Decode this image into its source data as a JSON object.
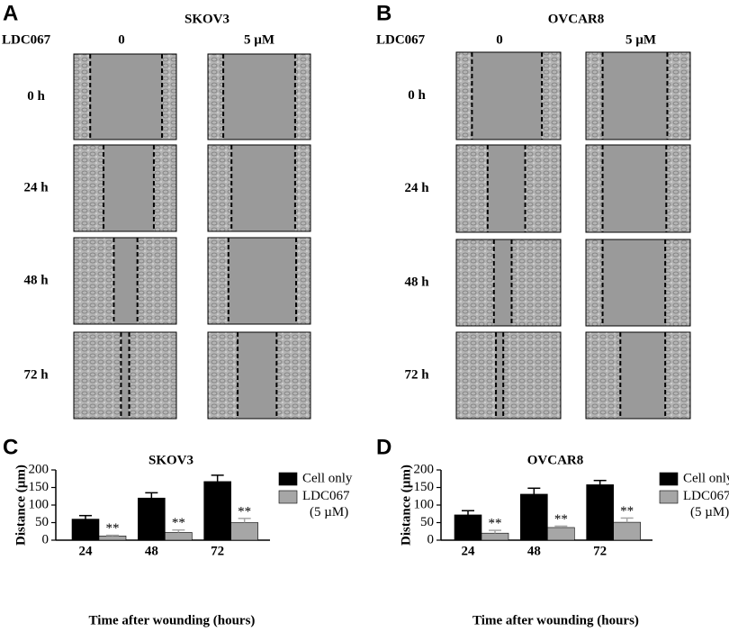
{
  "image_panels": [
    {
      "label": "A",
      "title": "SKOV3",
      "row_header": "LDC067",
      "columns": [
        "0",
        "5 µM"
      ],
      "rows": [
        "0 h",
        "24 h",
        "48 h",
        "72 h"
      ]
    },
    {
      "label": "B",
      "title": "OVCAR8",
      "row_header": "LDC067",
      "columns": [
        "0",
        "5 µM"
      ],
      "rows": [
        "0 h",
        "24 h",
        "48 h",
        "72 h"
      ]
    }
  ],
  "chart_data": [
    {
      "type": "bar",
      "panel_label": "C",
      "title": "SKOV3",
      "x_label": "Time after wounding (hours)",
      "y_label": "Distance (µm)",
      "categories": [
        "24",
        "48",
        "72"
      ],
      "series": [
        {
          "name": "Cell only",
          "color": "#000000",
          "values": [
            60,
            120,
            167
          ],
          "errors": [
            10,
            15,
            18
          ]
        },
        {
          "name": "LDC067 (5 µM)",
          "color": "#a6a6a6",
          "values": [
            12,
            22,
            50
          ],
          "errors": [
            2,
            7,
            12
          ],
          "significance": [
            "**",
            "**",
            "**"
          ]
        }
      ],
      "ylim": [
        0,
        200
      ],
      "yticks": [
        0,
        50,
        100,
        150,
        200
      ],
      "grid": false,
      "legend": "right"
    },
    {
      "type": "bar",
      "panel_label": "D",
      "title": "OVCAR8",
      "x_label": "Time after wounding (hours)",
      "y_label": "Distance (µm)",
      "categories": [
        "24",
        "48",
        "72"
      ],
      "series": [
        {
          "name": "Cell only",
          "color": "#000000",
          "values": [
            72,
            131,
            158
          ],
          "errors": [
            12,
            17,
            12
          ]
        },
        {
          "name": "LDC067 (5 µM)",
          "color": "#a6a6a6",
          "values": [
            20,
            36,
            51
          ],
          "errors": [
            8,
            4,
            12
          ],
          "significance": [
            "**",
            "**",
            "**"
          ]
        }
      ],
      "ylim": [
        0,
        200
      ],
      "yticks": [
        0,
        50,
        100,
        150,
        200
      ],
      "grid": false,
      "legend": "right"
    }
  ]
}
